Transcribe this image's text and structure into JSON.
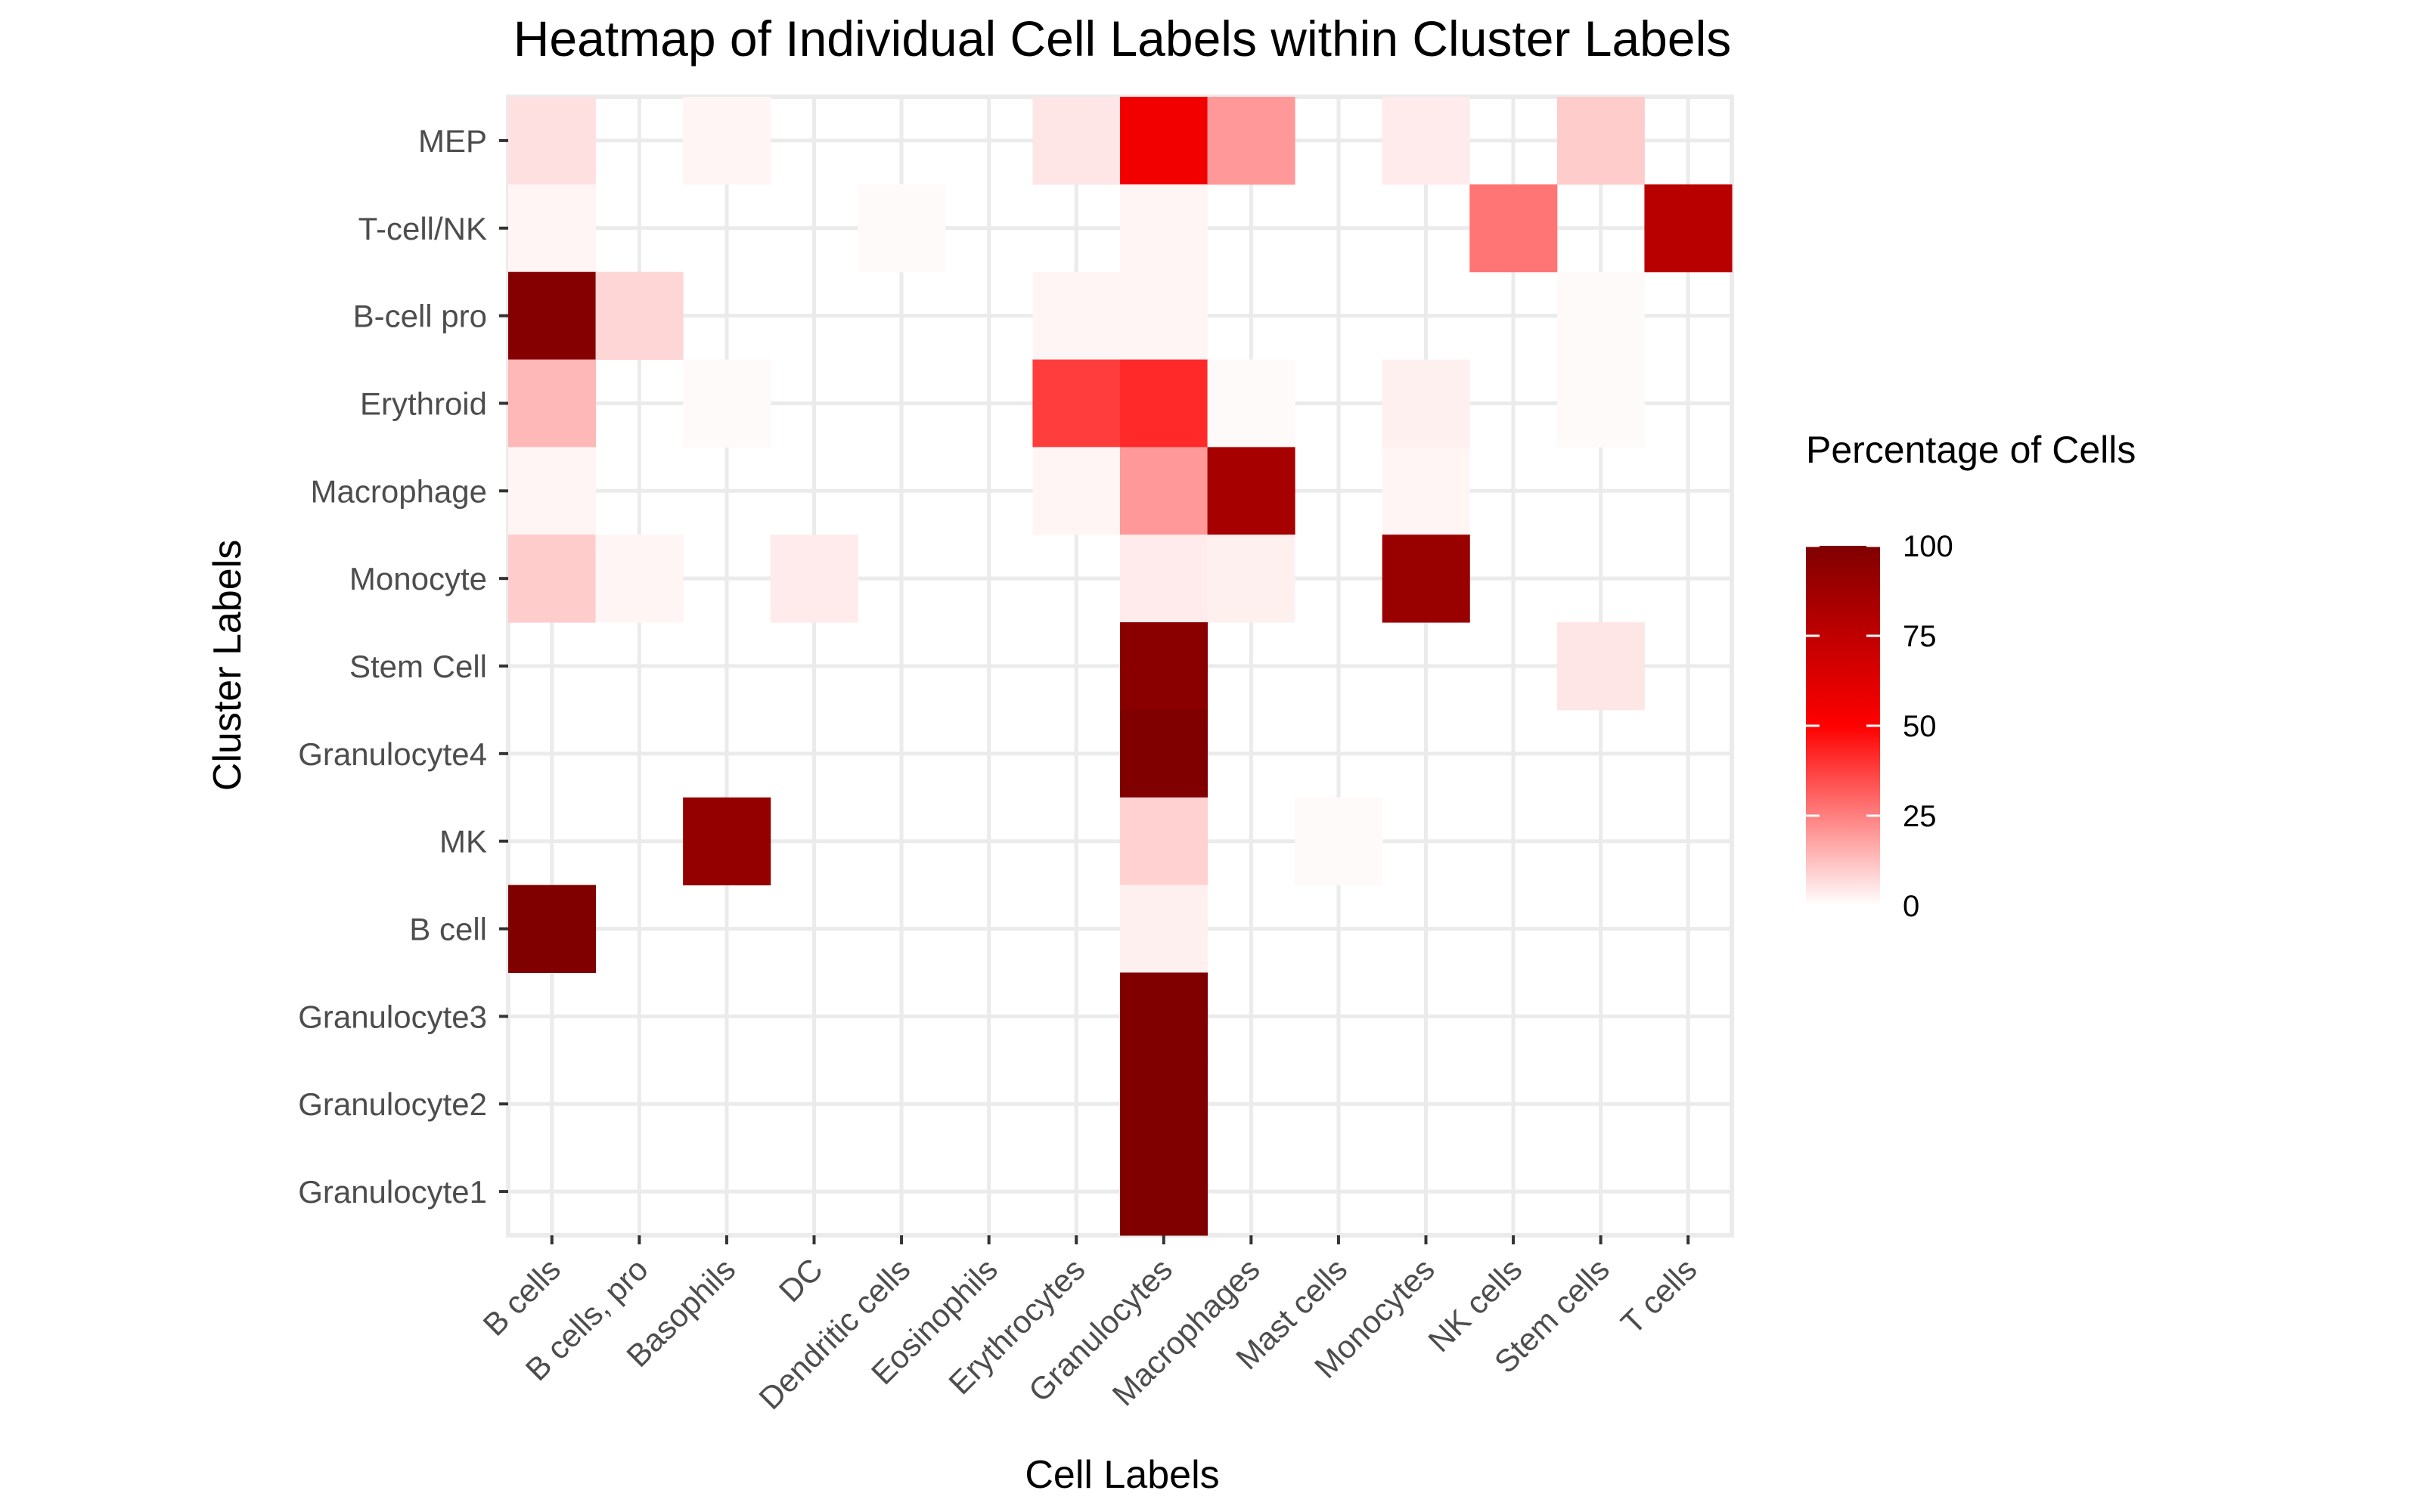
{
  "chart_data": {
    "type": "heatmap",
    "title": "Heatmap of Individual Cell Labels within Cluster Labels",
    "xlabel": "Cell Labels",
    "ylabel": "Cluster Labels",
    "x_categories": [
      "B cells",
      "B cells, pro",
      "Basophils",
      "DC",
      "Dendritic cells",
      "Eosinophils",
      "Erythrocytes",
      "Granulocytes",
      "Macrophages",
      "Mast cells",
      "Monocytes",
      "NK cells",
      "Stem cells",
      "T cells"
    ],
    "y_categories_top_to_bottom": [
      "MEP",
      "T-cell/NK",
      "B-cell pro",
      "Erythroid",
      "Macrophage",
      "Monocyte",
      "Stem Cell",
      "Granulocyte4",
      "MK",
      "B cell",
      "Granulocyte3",
      "Granulocyte2",
      "Granulocyte1"
    ],
    "values": [
      [
        6,
        0,
        2,
        0,
        0,
        0,
        5,
        55,
        20,
        0,
        4,
        0,
        10,
        0
      ],
      [
        2,
        0,
        0,
        0,
        1,
        0,
        0,
        2,
        0,
        0,
        0,
        27,
        0,
        78
      ],
      [
        98,
        8,
        0,
        0,
        0,
        0,
        2,
        2,
        0,
        0,
        0,
        0,
        1,
        0
      ],
      [
        14,
        0,
        1,
        0,
        0,
        0,
        38,
        42,
        1,
        0,
        3,
        0,
        1,
        0
      ],
      [
        2,
        0,
        0,
        0,
        0,
        0,
        2,
        20,
        85,
        0,
        2,
        0,
        0,
        0
      ],
      [
        10,
        2,
        0,
        4,
        0,
        0,
        0,
        4,
        3,
        0,
        90,
        0,
        0,
        0
      ],
      [
        0,
        0,
        0,
        0,
        0,
        0,
        0,
        96,
        0,
        0,
        0,
        0,
        5,
        0
      ],
      [
        0,
        0,
        0,
        0,
        0,
        0,
        0,
        100,
        0,
        0,
        0,
        0,
        0,
        0
      ],
      [
        0,
        0,
        92,
        0,
        0,
        0,
        0,
        9,
        0,
        1,
        0,
        0,
        0,
        0
      ],
      [
        100,
        0,
        0,
        0,
        0,
        0,
        0,
        3,
        0,
        0,
        0,
        0,
        0,
        0
      ],
      [
        0,
        0,
        0,
        0,
        0,
        0,
        0,
        100,
        0,
        0,
        0,
        0,
        0,
        0
      ],
      [
        0,
        0,
        0,
        0,
        0,
        0,
        0,
        100,
        0,
        0,
        0,
        0,
        0,
        0
      ],
      [
        0,
        0,
        0,
        0,
        0,
        0,
        0,
        100,
        0,
        0,
        0,
        0,
        0,
        0
      ]
    ],
    "color_scale": {
      "low": "#ffffff",
      "mid": "#ff0000",
      "high": "#800000",
      "min": 0,
      "max": 100
    },
    "grid": true,
    "legend": {
      "title": "Percentage of Cells",
      "ticks": [
        100,
        75,
        50,
        25,
        0
      ],
      "placement": "right"
    }
  }
}
